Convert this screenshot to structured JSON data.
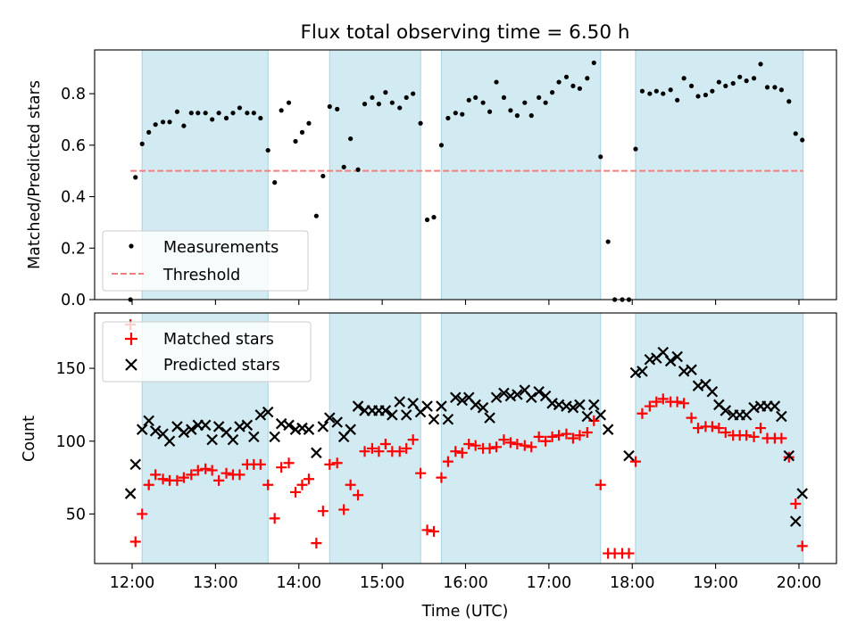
{
  "chart_data": [
    {
      "type": "scatter",
      "title": "Flux total observing time = 6.50 h",
      "xlabel": "",
      "ylabel": "Matched/Predicted stars",
      "xlim": [
        11.55,
        20.45
      ],
      "ylim": [
        0,
        0.97
      ],
      "yticks": [
        0.0,
        0.2,
        0.4,
        0.6,
        0.8
      ],
      "ytick_labels": [
        "0.0",
        "0.2",
        "0.4",
        "0.6",
        "0.8"
      ],
      "shaded_intervals": [
        [
          12.12,
          13.63
        ],
        [
          14.37,
          15.46
        ],
        [
          15.71,
          17.62
        ],
        [
          18.04,
          20.05
        ]
      ],
      "shade_color": "#add8e6",
      "legend_position": "lower left",
      "threshold": {
        "name": "Threshold",
        "y": 0.5,
        "x_range": [
          11.98,
          20.05
        ],
        "color": "#f08080",
        "style": "dashed"
      },
      "series": [
        {
          "name": "Measurements",
          "marker": "dot",
          "color": "#000000",
          "x": [
            11.98,
            12.04,
            12.12,
            12.2,
            12.28,
            12.37,
            12.45,
            12.54,
            12.62,
            12.71,
            12.79,
            12.88,
            12.96,
            13.04,
            13.13,
            13.21,
            13.29,
            13.38,
            13.46,
            13.54,
            13.63,
            13.71,
            13.79,
            13.88,
            13.96,
            14.04,
            14.12,
            14.21,
            14.29,
            14.37,
            14.46,
            14.54,
            14.62,
            14.71,
            14.79,
            14.88,
            14.96,
            15.04,
            15.12,
            15.21,
            15.29,
            15.37,
            15.46,
            15.54,
            15.62,
            15.71,
            15.79,
            15.88,
            15.96,
            16.04,
            16.12,
            16.21,
            16.29,
            16.37,
            16.46,
            16.54,
            16.62,
            16.71,
            16.79,
            16.88,
            16.96,
            17.04,
            17.12,
            17.21,
            17.29,
            17.37,
            17.46,
            17.54,
            17.62,
            17.71,
            17.79,
            17.88,
            17.96,
            18.04,
            18.12,
            18.21,
            18.29,
            18.37,
            18.46,
            18.54,
            18.62,
            18.71,
            18.79,
            18.88,
            18.96,
            19.04,
            19.12,
            19.21,
            19.29,
            19.37,
            19.46,
            19.54,
            19.62,
            19.71,
            19.79,
            19.88,
            19.96,
            20.04
          ],
          "y": [
            0.0,
            0.475,
            0.605,
            0.65,
            0.68,
            0.69,
            0.69,
            0.73,
            0.675,
            0.725,
            0.725,
            0.725,
            0.7,
            0.725,
            0.705,
            0.725,
            0.745,
            0.725,
            0.725,
            0.705,
            0.58,
            0.455,
            0.735,
            0.765,
            0.615,
            0.65,
            0.685,
            0.325,
            0.48,
            0.75,
            0.74,
            0.515,
            0.625,
            0.505,
            0.76,
            0.785,
            0.76,
            0.805,
            0.765,
            0.745,
            0.785,
            0.8,
            0.685,
            0.31,
            0.32,
            0.6,
            0.705,
            0.725,
            0.72,
            0.775,
            0.785,
            0.765,
            0.73,
            0.845,
            0.785,
            0.735,
            0.715,
            0.765,
            0.715,
            0.785,
            0.765,
            0.805,
            0.845,
            0.865,
            0.83,
            0.82,
            0.86,
            0.92,
            0.555,
            0.225,
            0.0,
            0.0,
            0.0,
            0.585,
            0.81,
            0.8,
            0.81,
            0.8,
            0.815,
            0.775,
            0.86,
            0.83,
            0.79,
            0.795,
            0.81,
            0.845,
            0.83,
            0.84,
            0.865,
            0.85,
            0.86,
            0.915,
            0.825,
            0.825,
            0.815,
            0.77,
            0.645,
            0.62
          ]
        }
      ]
    },
    {
      "type": "scatter",
      "title": "",
      "xlabel": "Time (UTC)",
      "ylabel": "Count",
      "xlim": [
        11.55,
        20.45
      ],
      "ylim": [
        16,
        188
      ],
      "yticks": [
        50,
        100,
        150
      ],
      "ytick_labels": [
        "50",
        "100",
        "150"
      ],
      "xticks": [
        12,
        13,
        14,
        15,
        16,
        17,
        18,
        19,
        20
      ],
      "xtick_labels": [
        "12:00",
        "13:00",
        "14:00",
        "15:00",
        "16:00",
        "17:00",
        "18:00",
        "19:00",
        "20:00"
      ],
      "shaded_intervals": [
        [
          12.12,
          13.63
        ],
        [
          14.37,
          15.46
        ],
        [
          15.71,
          17.62
        ],
        [
          18.04,
          20.05
        ]
      ],
      "shade_color": "#add8e6",
      "legend_position": "upper left",
      "series": [
        {
          "name": "Matched stars",
          "marker": "plus",
          "color": "#ff0000",
          "x": [
            11.98,
            12.04,
            12.12,
            12.2,
            12.28,
            12.37,
            12.45,
            12.54,
            12.62,
            12.71,
            12.79,
            12.88,
            12.96,
            13.04,
            13.13,
            13.21,
            13.29,
            13.38,
            13.46,
            13.54,
            13.63,
            13.71,
            13.79,
            13.88,
            13.96,
            14.04,
            14.12,
            14.21,
            14.29,
            14.37,
            14.46,
            14.54,
            14.62,
            14.71,
            14.79,
            14.88,
            14.96,
            15.04,
            15.12,
            15.21,
            15.29,
            15.37,
            15.46,
            15.54,
            15.62,
            15.71,
            15.79,
            15.88,
            15.96,
            16.04,
            16.12,
            16.21,
            16.29,
            16.37,
            16.46,
            16.54,
            16.62,
            16.71,
            16.79,
            16.88,
            16.96,
            17.04,
            17.12,
            17.21,
            17.29,
            17.37,
            17.46,
            17.54,
            17.62,
            17.71,
            17.79,
            17.88,
            17.96,
            18.04,
            18.12,
            18.21,
            18.29,
            18.37,
            18.46,
            18.54,
            18.62,
            18.71,
            18.79,
            18.88,
            18.96,
            19.04,
            19.12,
            19.21,
            19.29,
            19.37,
            19.46,
            19.54,
            19.62,
            19.71,
            19.79,
            19.88,
            19.96,
            20.04
          ],
          "y": [
            180,
            31,
            50,
            70,
            77,
            74,
            73,
            73,
            75,
            77,
            80,
            81,
            80,
            73,
            78,
            77,
            77,
            84,
            84,
            84,
            70,
            47,
            82,
            85,
            65,
            70,
            74,
            30,
            52,
            84,
            85,
            53,
            70,
            63,
            93,
            95,
            93,
            98,
            93,
            93,
            95,
            101,
            78,
            39,
            38,
            75,
            86,
            93,
            92,
            98,
            97,
            95,
            95,
            96,
            101,
            99,
            98,
            97,
            96,
            103,
            100,
            103,
            104,
            105,
            102,
            104,
            106,
            114,
            70,
            23,
            23,
            23,
            23,
            86,
            119,
            124,
            127,
            129,
            127,
            127,
            126,
            116,
            109,
            110,
            110,
            109,
            106,
            104,
            104,
            104,
            103,
            109,
            102,
            102,
            102,
            89,
            57,
            28
          ]
        },
        {
          "name": "Predicted stars",
          "marker": "cross",
          "color": "#000000",
          "x": [
            11.98,
            12.04,
            12.12,
            12.2,
            12.28,
            12.37,
            12.45,
            12.54,
            12.62,
            12.71,
            12.79,
            12.88,
            12.96,
            13.04,
            13.13,
            13.21,
            13.29,
            13.38,
            13.46,
            13.54,
            13.63,
            13.71,
            13.79,
            13.88,
            13.96,
            14.04,
            14.12,
            14.21,
            14.29,
            14.37,
            14.46,
            14.54,
            14.62,
            14.71,
            14.79,
            14.88,
            14.96,
            15.04,
            15.12,
            15.21,
            15.29,
            15.37,
            15.46,
            15.54,
            15.62,
            15.71,
            15.79,
            15.88,
            15.96,
            16.04,
            16.12,
            16.21,
            16.29,
            16.37,
            16.46,
            16.54,
            16.62,
            16.71,
            16.79,
            16.88,
            16.96,
            17.04,
            17.12,
            17.21,
            17.29,
            17.37,
            17.46,
            17.54,
            17.62,
            17.71,
            17.96,
            18.04,
            18.12,
            18.21,
            18.29,
            18.37,
            18.46,
            18.54,
            18.62,
            18.71,
            18.79,
            18.88,
            18.96,
            19.04,
            19.12,
            19.21,
            19.29,
            19.37,
            19.46,
            19.54,
            19.62,
            19.71,
            19.79,
            19.88,
            19.96,
            20.04
          ],
          "y": [
            64,
            84,
            108,
            114,
            107,
            105,
            100,
            110,
            106,
            108,
            111,
            111,
            101,
            110,
            106,
            101,
            110,
            111,
            103,
            118,
            120,
            103,
            112,
            111,
            108,
            109,
            108,
            92,
            110,
            116,
            113,
            103,
            108,
            124,
            121,
            121,
            121,
            121,
            118,
            127,
            118,
            126,
            120,
            124,
            115,
            124,
            115,
            130,
            128,
            130,
            125,
            123,
            116,
            130,
            133,
            131,
            132,
            135,
            130,
            134,
            131,
            126,
            125,
            124,
            123,
            125,
            117,
            125,
            118,
            108,
            90,
            147,
            148,
            156,
            157,
            161,
            155,
            158,
            148,
            149,
            138,
            139,
            134,
            125,
            121,
            118,
            118,
            118,
            123,
            124,
            124,
            124,
            117,
            90,
            45,
            64
          ]
        }
      ]
    }
  ]
}
